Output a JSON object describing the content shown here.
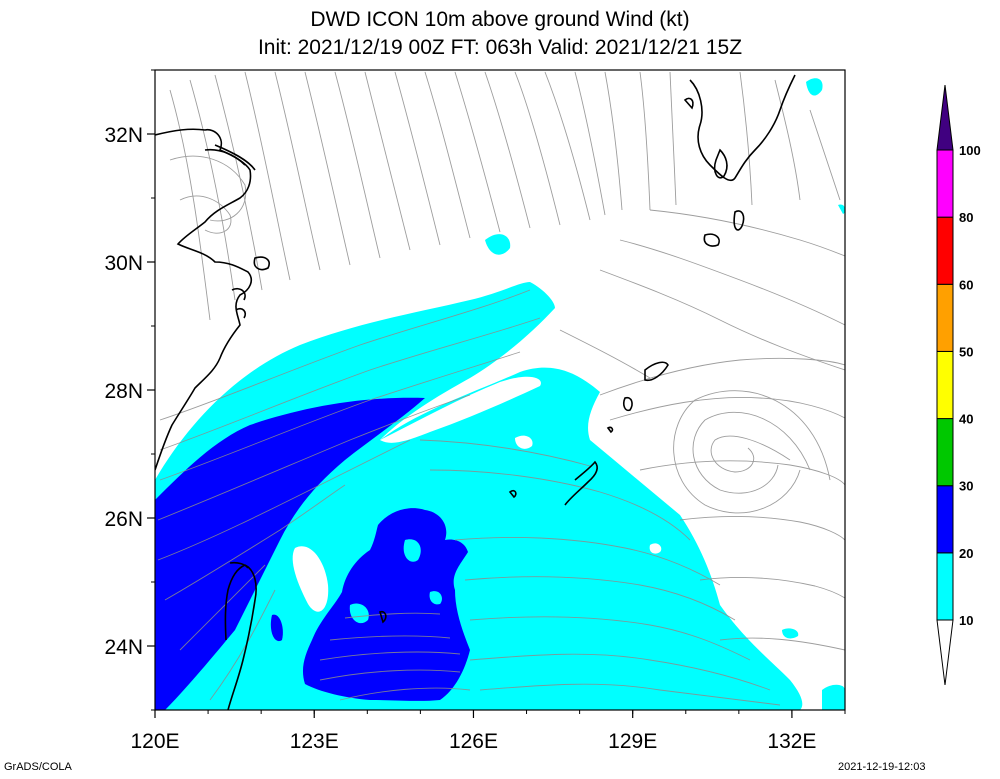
{
  "title": {
    "line1": "DWD ICON 10m above ground Wind (kt)",
    "line2": "Init: 2021/12/19 00Z  FT: 063h  Valid: 2021/12/21 15Z"
  },
  "axes": {
    "lon_ticks": [
      {
        "value": 120,
        "label": "120E"
      },
      {
        "value": 123,
        "label": "123E"
      },
      {
        "value": 126,
        "label": "126E"
      },
      {
        "value": 129,
        "label": "129E"
      },
      {
        "value": 132,
        "label": "132E"
      }
    ],
    "lat_ticks": [
      {
        "value": 24,
        "label": "24N"
      },
      {
        "value": 26,
        "label": "26N"
      },
      {
        "value": 28,
        "label": "28N"
      },
      {
        "value": 30,
        "label": "30N"
      },
      {
        "value": 32,
        "label": "32N"
      }
    ],
    "lon_range": [
      120,
      133
    ],
    "lat_range": [
      23,
      33
    ]
  },
  "colorbar": {
    "levels": [
      {
        "label": "10",
        "color": "#00ffff"
      },
      {
        "label": "20",
        "color": "#0000ff"
      },
      {
        "label": "30",
        "color": "#00c800"
      },
      {
        "label": "40",
        "color": "#ffff00"
      },
      {
        "label": "50",
        "color": "#ffa000"
      },
      {
        "label": "60",
        "color": "#ff0000"
      },
      {
        "label": "80",
        "color": "#ff00ff"
      },
      {
        "label": "100",
        "color": "#400080"
      }
    ]
  },
  "colors": {
    "band_10_20": "#00ffff",
    "band_20_30": "#0000ff",
    "streamline": "#8c8c8c",
    "coast": "#000000"
  },
  "footer": {
    "left": "GrADS/COLA",
    "right": "2021-12-19-12:03"
  }
}
